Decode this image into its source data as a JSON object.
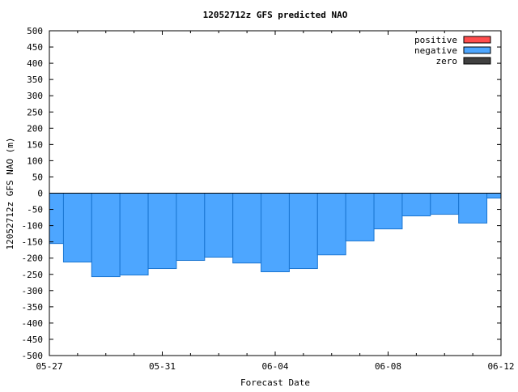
{
  "chart_data": {
    "type": "bar",
    "title": "12052712z GFS predicted NAO",
    "xlabel": "Forecast Date",
    "ylabel": "12052712z GFS NAO (m)",
    "ylim": [
      -500,
      500
    ],
    "yticks": [
      500,
      450,
      400,
      350,
      300,
      250,
      200,
      150,
      100,
      50,
      0,
      -50,
      -100,
      -150,
      -200,
      -250,
      -300,
      -350,
      -400,
      -450,
      -500
    ],
    "xtick_labels": [
      "05-27",
      "05-31",
      "06-04",
      "06-08",
      "06-12"
    ],
    "xlim_days": [
      0,
      16
    ],
    "grid": false,
    "legend_position": "top-right",
    "legend": [
      {
        "name": "positive",
        "color": "#ff4d4d"
      },
      {
        "name": "negative",
        "color": "#4da6ff"
      },
      {
        "name": "zero",
        "color": "#404040"
      }
    ],
    "bars": {
      "x_start_days": [
        0,
        0.5,
        1.5,
        2.5,
        3.5,
        4.5,
        5.5,
        6.5,
        7.5,
        8.5,
        9.5,
        10.5,
        11.5,
        12.5,
        13.5,
        14.5,
        15.5
      ],
      "x_end_days": [
        0.5,
        1.5,
        2.5,
        3.5,
        4.5,
        5.5,
        6.5,
        7.5,
        8.5,
        9.5,
        10.5,
        11.5,
        12.5,
        13.5,
        14.5,
        15.5,
        16
      ],
      "values": [
        -155,
        -212,
        -257,
        -252,
        -232,
        -207,
        -197,
        -215,
        -242,
        -232,
        -190,
        -147,
        -110,
        -70,
        -65,
        -92,
        -15
      ]
    },
    "colors": {
      "negative_fill": "#4da6ff",
      "negative_stroke": "#1a75d1",
      "zero_line": "#000000"
    }
  }
}
